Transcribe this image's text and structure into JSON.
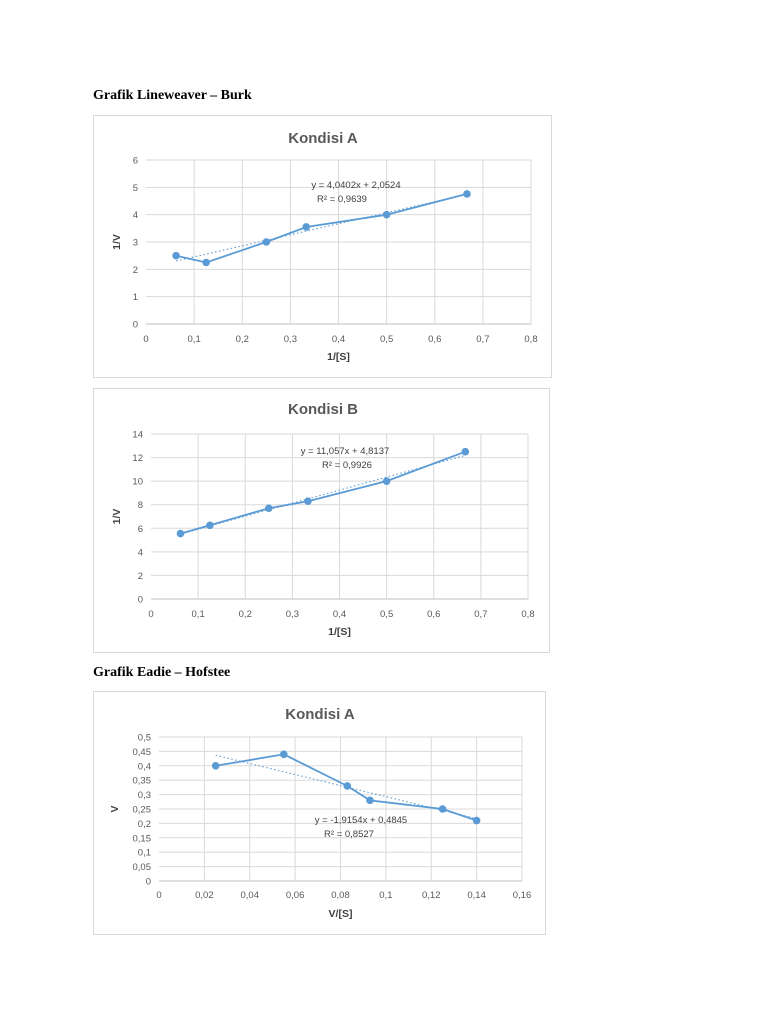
{
  "headings": {
    "lineweaver": "Grafik Lineweaver – Burk",
    "eadie": "Grafik Eadie – Hofstee"
  },
  "chart_data": [
    {
      "type": "scatter",
      "title": "Kondisi A",
      "xlabel": "1/[S]",
      "ylabel": "1/V",
      "xlim": [
        0,
        0.8
      ],
      "ylim": [
        0,
        6
      ],
      "x_ticks": [
        0,
        0.1,
        0.2,
        0.3,
        0.4,
        0.5,
        0.6,
        0.7,
        0.8
      ],
      "x_tick_labels": [
        "0",
        "0,1",
        "0,2",
        "0,3",
        "0,4",
        "0,5",
        "0,6",
        "0,7",
        "0,8"
      ],
      "y_ticks": [
        0,
        1,
        2,
        3,
        4,
        5,
        6
      ],
      "y_tick_labels": [
        "0",
        "1",
        "2",
        "3",
        "4",
        "5",
        "6"
      ],
      "grid": true,
      "legend": "none",
      "series": [
        {
          "x": [
            0.0625,
            0.125,
            0.25,
            0.333,
            0.5,
            0.667
          ],
          "y": [
            2.5,
            2.25,
            3.0,
            3.55,
            4.0,
            4.76
          ]
        }
      ],
      "trendline": {
        "slope": 4.0402,
        "intercept": 2.0524,
        "equation": "y = 4,0402x + 2,0524",
        "r2": "R² = 0,9639"
      }
    },
    {
      "type": "scatter",
      "title": "Kondisi B",
      "xlabel": "1/[S]",
      "ylabel": "1/V",
      "xlim": [
        0,
        0.8
      ],
      "ylim": [
        0,
        14
      ],
      "x_ticks": [
        0,
        0.1,
        0.2,
        0.3,
        0.4,
        0.5,
        0.6,
        0.7,
        0.8
      ],
      "x_tick_labels": [
        "0",
        "0,1",
        "0,2",
        "0,3",
        "0,4",
        "0,5",
        "0,6",
        "0,7",
        "0,8"
      ],
      "y_ticks": [
        0,
        2,
        4,
        6,
        8,
        10,
        12,
        14
      ],
      "y_tick_labels": [
        "0",
        "2",
        "4",
        "6",
        "8",
        "10",
        "12",
        "14"
      ],
      "grid": true,
      "legend": "none",
      "series": [
        {
          "x": [
            0.0625,
            0.125,
            0.25,
            0.333,
            0.5,
            0.667
          ],
          "y": [
            5.55,
            6.25,
            7.7,
            8.3,
            10.0,
            12.5
          ]
        }
      ],
      "trendline": {
        "slope": 11.057,
        "intercept": 4.8137,
        "equation": "y = 11,057x + 4,8137",
        "r2": "R² = 0,9926"
      }
    },
    {
      "type": "scatter",
      "title": "Kondisi A",
      "xlabel": "V/[S]",
      "ylabel": "V",
      "xlim": [
        0,
        0.16
      ],
      "ylim": [
        0,
        0.5
      ],
      "x_ticks": [
        0,
        0.02,
        0.04,
        0.06,
        0.08,
        0.1,
        0.12,
        0.14,
        0.16
      ],
      "x_tick_labels": [
        "0",
        "0,02",
        "0,04",
        "0,06",
        "0,08",
        "0,1",
        "0,12",
        "0,14",
        "0,16"
      ],
      "y_ticks": [
        0,
        0.05,
        0.1,
        0.15,
        0.2,
        0.25,
        0.3,
        0.35,
        0.4,
        0.45,
        0.5
      ],
      "y_tick_labels": [
        "0",
        "0,05",
        "0,1",
        "0,15",
        "0,2",
        "0,25",
        "0,3",
        "0,35",
        "0,4",
        "0,45",
        "0,5"
      ],
      "grid": true,
      "legend": "none",
      "series": [
        {
          "x": [
            0.025,
            0.055,
            0.083,
            0.093,
            0.125,
            0.14
          ],
          "y": [
            0.4,
            0.44,
            0.33,
            0.28,
            0.25,
            0.21
          ]
        }
      ],
      "trendline": {
        "slope": -1.9154,
        "intercept": 0.4845,
        "equation": "y = -1,9154x + 0,4845",
        "r2": "R² = 0,8527"
      }
    }
  ]
}
